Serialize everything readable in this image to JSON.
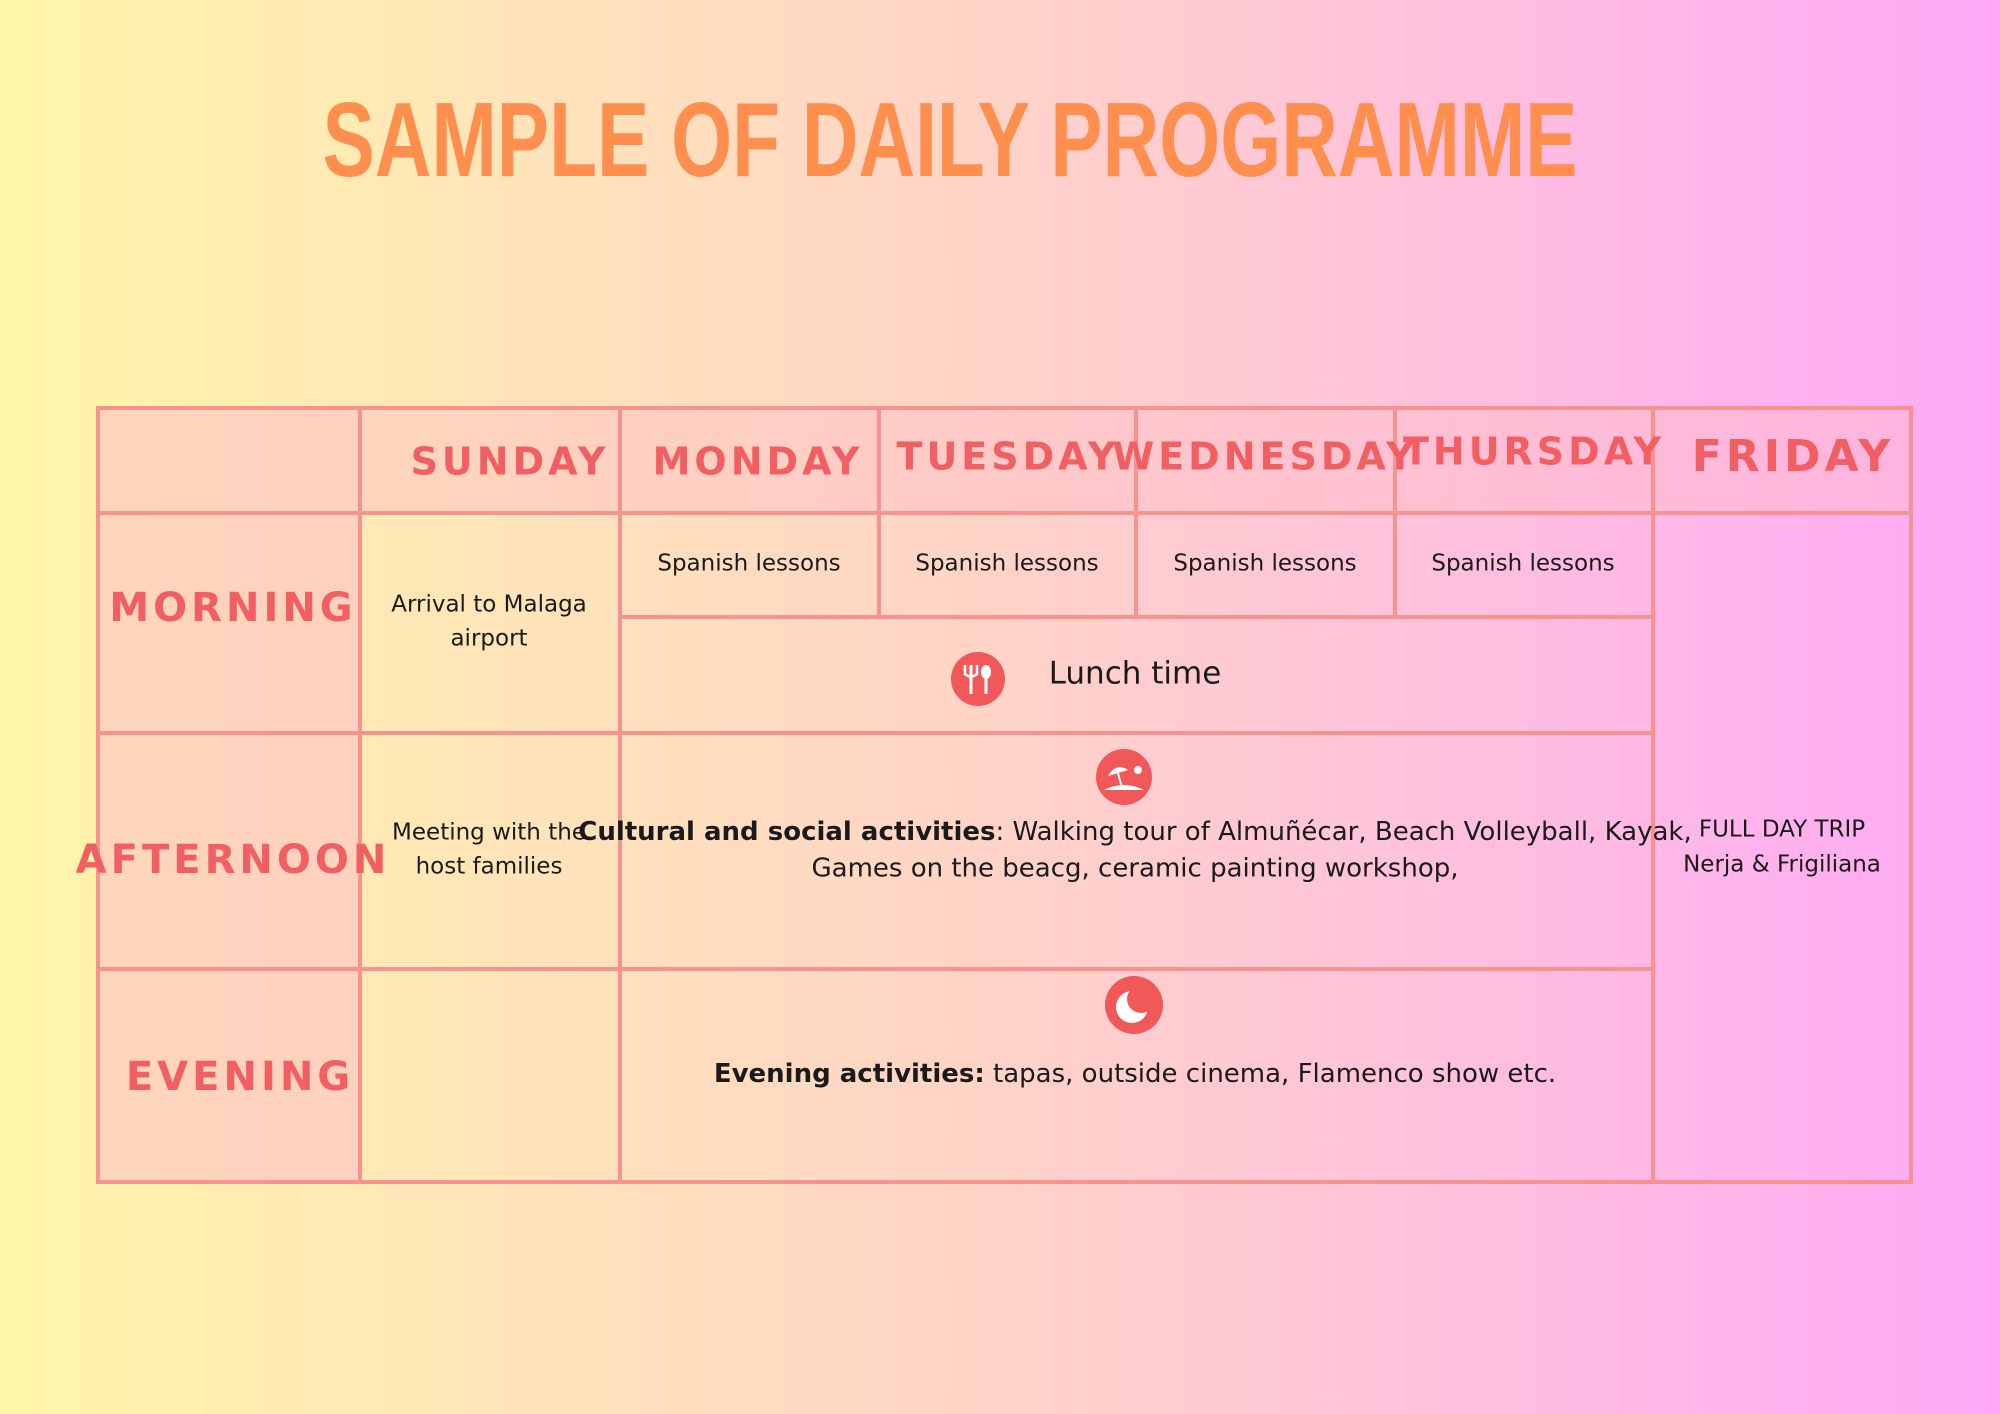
{
  "header": {
    "title": "SAMPLE OF DAILY PROGRAMME"
  },
  "table": {
    "columns": [
      "SUNDAY",
      "MONDAY",
      "TUESDAY",
      "WEDNESDAY",
      "THURSDAY",
      "FRIDAY"
    ],
    "row_labels": [
      "MORNING",
      "AFTERNOON",
      "EVENING"
    ],
    "sunday_morning": [
      "Arrival to Malaga",
      "airport"
    ],
    "weekday_morning": [
      "Spanish lessons",
      "Spanish lessons",
      "Spanish lessons",
      "Spanish lessons"
    ],
    "lunch": "Lunch time",
    "sunday_afternoon": [
      "Meeting with the",
      "host families"
    ],
    "afternoon_activities": {
      "label": "Cultural and social activities",
      "lines": [
        ": Walking tour of Almuñécar, Beach Volleyball, Kayak,",
        "Games on the beacg, ceramic painting workshop,"
      ]
    },
    "evening_activities": {
      "label": "Evening activities:",
      "text": " tapas, outside cinema, Flamenco show etc."
    },
    "friday": [
      "FULL DAY TRIP",
      "Nerja & Frigiliana"
    ]
  }
}
